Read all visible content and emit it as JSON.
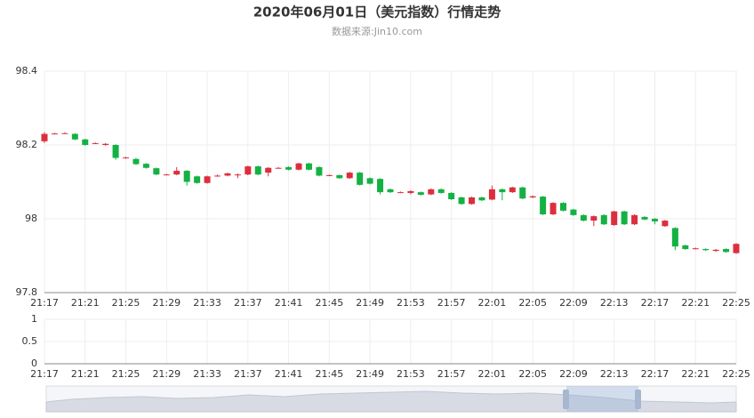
{
  "chart_data": {
    "type": "candlestick",
    "title": "2020年06月01日（美元指数）行情走势",
    "subtitle": "数据来源:Jin10.com",
    "categories": [
      "21:17",
      null,
      null,
      null,
      "21:21",
      null,
      null,
      null,
      "21:25",
      null,
      null,
      null,
      "21:29",
      null,
      null,
      null,
      "21:33",
      null,
      null,
      null,
      "21:37",
      null,
      null,
      null,
      "21:41",
      null,
      null,
      null,
      "21:45",
      null,
      null,
      null,
      "21:49",
      null,
      null,
      null,
      "21:53",
      null,
      null,
      null,
      "21:57",
      null,
      null,
      null,
      "22:01",
      null,
      null,
      null,
      "22:05",
      null,
      null,
      null,
      "22:09",
      null,
      null,
      null,
      "22:13",
      null,
      null,
      null,
      "22:17",
      null,
      null,
      null,
      "22:21",
      null,
      null,
      null,
      "22:25"
    ],
    "open": [
      98.21,
      98.231,
      98.232,
      98.23,
      98.215,
      98.205,
      98.2,
      98.2,
      98.166,
      98.162,
      98.149,
      98.137,
      98.12,
      98.12,
      98.13,
      98.115,
      98.097,
      98.117,
      98.117,
      98.12,
      98.12,
      98.142,
      98.125,
      98.138,
      98.14,
      98.133,
      98.15,
      98.14,
      98.118,
      98.118,
      98.11,
      98.125,
      98.11,
      98.108,
      98.08,
      98.072,
      98.07,
      98.072,
      98.066,
      98.08,
      98.07,
      98.058,
      98.04,
      98.058,
      98.052,
      98.08,
      98.072,
      98.085,
      98.058,
      98.06,
      98.012,
      98.043,
      98.025,
      98.01,
      97.995,
      98.01,
      97.983,
      98.02,
      97.985,
      98.005,
      98.0,
      97.98,
      97.975,
      97.928,
      97.92,
      97.918,
      97.913,
      97.918,
      97.907
    ],
    "close": [
      98.23,
      98.231,
      98.232,
      98.215,
      98.2,
      98.205,
      98.203,
      98.165,
      98.166,
      98.148,
      98.138,
      98.12,
      98.12,
      98.13,
      98.1,
      98.097,
      98.115,
      98.117,
      98.123,
      98.12,
      98.142,
      98.12,
      98.138,
      98.138,
      98.133,
      98.15,
      98.133,
      98.117,
      98.118,
      98.11,
      98.125,
      98.092,
      98.095,
      98.072,
      98.072,
      98.072,
      98.075,
      98.065,
      98.08,
      98.07,
      98.053,
      98.04,
      98.058,
      98.05,
      98.08,
      98.072,
      98.085,
      98.055,
      98.061,
      98.012,
      98.043,
      98.022,
      98.01,
      97.995,
      98.007,
      97.985,
      98.02,
      97.985,
      98.01,
      97.998,
      97.993,
      97.995,
      97.925,
      97.918,
      97.92,
      97.915,
      97.916,
      97.91,
      97.932
    ],
    "low": [
      98.205,
      98.229,
      98.23,
      98.213,
      98.198,
      98.203,
      98.198,
      98.16,
      98.163,
      98.146,
      98.136,
      98.118,
      98.118,
      98.118,
      98.09,
      98.095,
      98.095,
      98.114,
      98.115,
      98.11,
      98.118,
      98.118,
      98.115,
      98.136,
      98.131,
      98.131,
      98.131,
      98.115,
      98.116,
      98.108,
      98.108,
      98.09,
      98.093,
      98.066,
      98.07,
      98.07,
      98.066,
      98.063,
      98.064,
      98.068,
      98.051,
      98.038,
      98.038,
      98.048,
      98.05,
      98.05,
      98.07,
      98.053,
      98.056,
      98.01,
      98.01,
      98.02,
      98.008,
      97.993,
      97.98,
      97.983,
      97.981,
      97.983,
      97.983,
      97.996,
      97.985,
      97.978,
      97.915,
      97.916,
      97.917,
      97.913,
      97.91,
      97.908,
      97.905
    ],
    "high": [
      98.235,
      98.233,
      98.234,
      98.232,
      98.217,
      98.207,
      98.205,
      98.202,
      98.168,
      98.165,
      98.151,
      98.139,
      98.122,
      98.14,
      98.132,
      98.117,
      98.117,
      98.12,
      98.125,
      98.123,
      98.144,
      98.144,
      98.14,
      98.14,
      98.142,
      98.152,
      98.152,
      98.142,
      98.12,
      98.12,
      98.127,
      98.127,
      98.112,
      98.11,
      98.082,
      98.074,
      98.077,
      98.074,
      98.082,
      98.082,
      98.072,
      98.06,
      98.06,
      98.06,
      98.09,
      98.082,
      98.087,
      98.087,
      98.063,
      98.062,
      98.045,
      98.045,
      98.027,
      98.012,
      98.009,
      98.012,
      98.022,
      98.022,
      98.012,
      98.007,
      98.002,
      97.997,
      97.977,
      97.93,
      97.922,
      97.92,
      97.918,
      97.92,
      97.934
    ],
    "up_color": "#dd2e3e",
    "down_color": "#14b143",
    "ylim": [
      97.8,
      98.4
    ],
    "yticks": [
      97.8,
      98,
      98.2,
      98.4
    ],
    "volume_ylim": [
      0,
      1
    ],
    "volume_yticks": [
      0,
      0.5,
      1
    ],
    "grid": true
  }
}
